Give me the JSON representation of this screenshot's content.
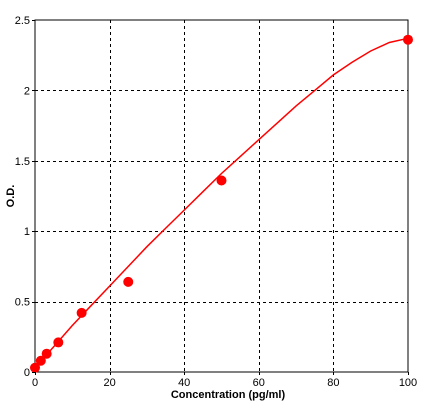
{
  "chart_data": {
    "type": "scatter",
    "title": "",
    "xlabel": "Concentration (pg/ml)",
    "ylabel": "O.D.",
    "xlim": [
      0,
      100
    ],
    "ylim": [
      0,
      2.5
    ],
    "x_ticks": [
      0,
      20,
      40,
      60,
      80,
      100
    ],
    "x_tick_labels": [
      "0",
      "20",
      "40",
      "60",
      "80",
      "100"
    ],
    "y_ticks": [
      0,
      0.5,
      1,
      1.5,
      2,
      2.5
    ],
    "y_tick_labels": [
      "0",
      "0.5",
      "1",
      "1.5",
      "2",
      "2.5"
    ],
    "grid": true,
    "grid_style": "dashed",
    "legend": false,
    "colors": {
      "marker": "#ff0000",
      "curve": "#ff0000",
      "grid": "#000000",
      "axis": "#000000"
    },
    "series": [
      {
        "type": "scatter",
        "marker": "circle",
        "x": [
          0,
          1.56,
          3.13,
          6.25,
          12.5,
          25,
          50,
          100
        ],
        "y": [
          0.03,
          0.08,
          0.13,
          0.21,
          0.42,
          0.64,
          1.36,
          2.36
        ]
      },
      {
        "type": "line",
        "x": [
          0,
          5,
          10,
          15,
          20,
          25,
          30,
          35,
          40,
          45,
          50,
          55,
          60,
          65,
          70,
          75,
          80,
          85,
          90,
          95,
          100
        ],
        "y": [
          0.03,
          0.18,
          0.33,
          0.47,
          0.61,
          0.75,
          0.89,
          1.02,
          1.15,
          1.28,
          1.41,
          1.53,
          1.65,
          1.77,
          1.89,
          2.0,
          2.11,
          2.2,
          2.28,
          2.34,
          2.37
        ]
      }
    ]
  }
}
